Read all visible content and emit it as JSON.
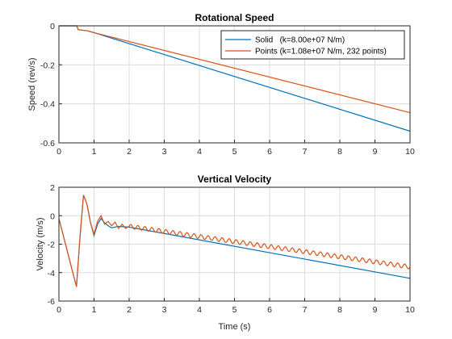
{
  "figure": {
    "background": "#ffffff"
  },
  "chart_data": [
    {
      "type": "line",
      "title": "Rotational Speed",
      "xlabel": "",
      "ylabel": "Speed (rev/s)",
      "xlim": [
        0,
        10
      ],
      "ylim": [
        -0.6,
        0
      ],
      "xticks": [
        "0",
        "1",
        "2",
        "3",
        "4",
        "5",
        "6",
        "7",
        "8",
        "9",
        "10"
      ],
      "yticks": [
        "0",
        "-0.2",
        "-0.4",
        "-0.6"
      ],
      "grid": true,
      "legend_position": "top-right",
      "series": [
        {
          "name": "Solid   (k=8.00e+07 N/m)",
          "color": "#0072BD",
          "x": [
            0,
            0.5,
            0.52,
            0.55,
            0.8,
            0.9,
            1.0,
            10.0
          ],
          "y": [
            0,
            0,
            -0.005,
            -0.02,
            -0.025,
            -0.03,
            -0.035,
            -0.54
          ]
        },
        {
          "name": "Points (k=1.08e+07 N/m, 232 points)",
          "color": "#D95319",
          "x": [
            0,
            0.5,
            0.52,
            0.55,
            0.8,
            0.9,
            1.0,
            10.0
          ],
          "y": [
            0,
            0,
            -0.005,
            -0.02,
            -0.025,
            -0.03,
            -0.035,
            -0.445
          ]
        }
      ]
    },
    {
      "type": "line",
      "title": "Vertical Velocity",
      "xlabel": "Time (s)",
      "ylabel": "Velocity (m/s)",
      "xlim": [
        0,
        10
      ],
      "ylim": [
        -6,
        2
      ],
      "xticks": [
        "0",
        "1",
        "2",
        "3",
        "4",
        "5",
        "6",
        "7",
        "8",
        "9",
        "10"
      ],
      "yticks": [
        "2",
        "0",
        "-2",
        "-4",
        "-6"
      ],
      "grid": true,
      "series": [
        {
          "name": "Solid",
          "color": "#0072BD",
          "x": [
            0,
            0.5,
            0.6,
            0.7,
            0.8,
            0.9,
            1.0,
            1.1,
            1.2,
            1.3,
            1.4,
            1.5,
            1.7,
            2.0,
            10.0
          ],
          "y": [
            -0.2,
            -5.0,
            -1.5,
            1.45,
            0.8,
            -0.5,
            -1.4,
            -0.6,
            -0.2,
            -0.5,
            -0.7,
            -0.85,
            -0.75,
            -0.8,
            -4.4
          ]
        },
        {
          "name": "Points",
          "color": "#D95319",
          "x": [
            0,
            0.5,
            0.6,
            0.7,
            0.8,
            0.9,
            1.0,
            1.1,
            1.2,
            1.3,
            1.4,
            1.5,
            1.6,
            1.7,
            1.8,
            1.9,
            2.0,
            10.0
          ],
          "y": [
            -0.2,
            -5.0,
            -1.5,
            1.45,
            0.8,
            -0.5,
            -1.3,
            -0.4,
            0.0,
            -0.6,
            -0.4,
            -0.7,
            -0.45,
            -0.9,
            -0.6,
            -0.9,
            -0.75,
            -3.6
          ],
          "oscillation_amplitude": 0.15,
          "oscillation_period": 0.2
        }
      ]
    }
  ]
}
